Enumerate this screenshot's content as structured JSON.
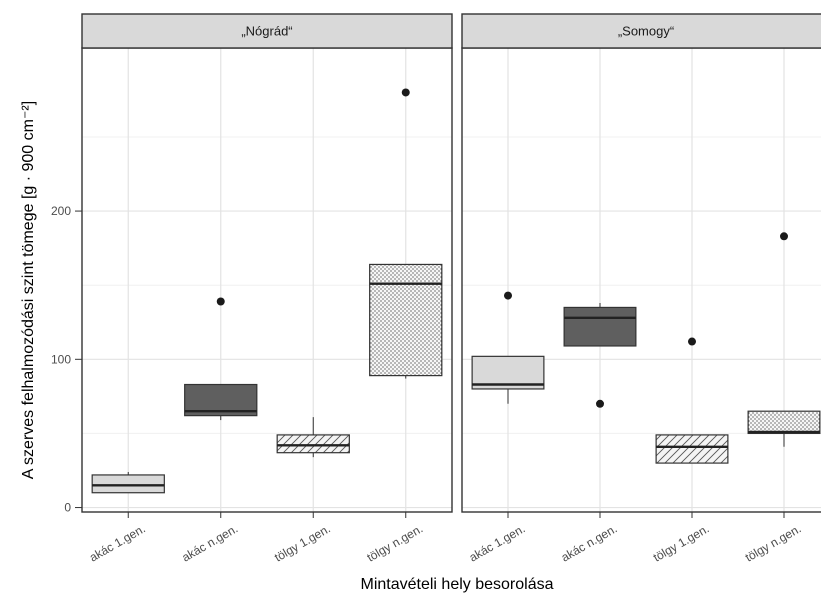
{
  "chart_data": {
    "type": "box",
    "xlabel": "Mintavételi hely besorolása",
    "ylabel": "A szerves felhalmozódási szint tömege [g · 900 cm⁻²]",
    "ylim": [
      -3,
      310
    ],
    "yticks": [
      0,
      100,
      200
    ],
    "grid": true,
    "categories": [
      "akác 1.gen.",
      "akác n.gen.",
      "tölgy 1.gen.",
      "tölgy n.gen."
    ],
    "fills": {
      "akác 1.gen.": "#d9d9d9",
      "akác n.gen.": "#5f5f5f",
      "tölgy 1.gen.": "#f2f2f2",
      "tölgy n.gen.": "#f2f2f2"
    },
    "panels": [
      {
        "title": "„Nógrád“",
        "boxes": [
          {
            "category": "akác 1.gen.",
            "min": 10,
            "q1": 10,
            "median": 15,
            "q3": 22,
            "max": 24,
            "outliers": []
          },
          {
            "category": "akác n.gen.",
            "min": 59,
            "q1": 62,
            "median": 65,
            "q3": 83,
            "max": 83,
            "outliers": [
              139
            ]
          },
          {
            "category": "tölgy 1.gen.",
            "min": 34,
            "q1": 37,
            "median": 42,
            "q3": 49,
            "max": 61,
            "outliers": []
          },
          {
            "category": "tölgy n.gen.",
            "min": 87,
            "q1": 89,
            "median": 151,
            "q3": 164,
            "max": 164,
            "outliers": [
              280
            ]
          }
        ]
      },
      {
        "title": "„Somogy“",
        "boxes": [
          {
            "category": "akác 1.gen.",
            "min": 70,
            "q1": 80,
            "median": 83,
            "q3": 102,
            "max": 102,
            "outliers": [
              143
            ]
          },
          {
            "category": "akác n.gen.",
            "min": 109,
            "q1": 109,
            "median": 128,
            "q3": 135,
            "max": 138,
            "outliers": [
              70
            ]
          },
          {
            "category": "tölgy 1.gen.",
            "min": 30,
            "q1": 30,
            "median": 41,
            "q3": 49,
            "max": 49,
            "outliers": [
              112
            ]
          },
          {
            "category": "tölgy n.gen.",
            "min": 41,
            "q1": 50,
            "median": 51,
            "q3": 65,
            "max": 65,
            "outliers": [
              183
            ]
          }
        ]
      }
    ]
  }
}
